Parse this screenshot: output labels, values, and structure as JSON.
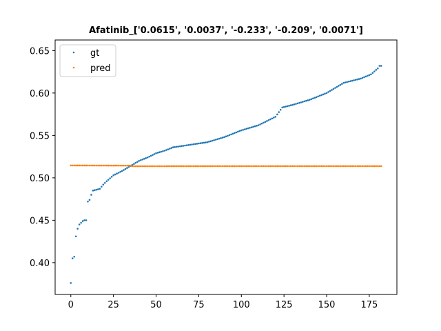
{
  "chart_data": {
    "type": "scatter",
    "title": "Afatinib_['0.0615', '0.0037', '-0.233', '-0.209', '0.0071']",
    "xlabel": "",
    "ylabel": "",
    "xlim": [
      -9.2,
      191.2
    ],
    "ylim": [
      0.3625,
      0.6625
    ],
    "xticks": [
      0,
      25,
      50,
      75,
      100,
      125,
      150,
      175
    ],
    "xtick_labels": [
      "0",
      "25",
      "50",
      "75",
      "100",
      "125",
      "150",
      "175"
    ],
    "yticks": [
      0.4,
      0.45,
      0.5,
      0.55,
      0.6,
      0.65
    ],
    "ytick_labels": [
      "0.40",
      "0.45",
      "0.50",
      "0.55",
      "0.60",
      "0.65"
    ],
    "legend": "upper-left",
    "grid": false,
    "n_points": 183,
    "series": [
      {
        "name": "gt",
        "color": "#1f77b4",
        "anchors": [
          [
            0,
            0.376
          ],
          [
            1,
            0.405
          ],
          [
            2,
            0.407
          ],
          [
            3,
            0.431
          ],
          [
            4,
            0.44
          ],
          [
            5,
            0.445
          ],
          [
            6,
            0.447
          ],
          [
            7,
            0.449
          ],
          [
            8,
            0.45
          ],
          [
            9,
            0.45
          ],
          [
            10,
            0.472
          ],
          [
            11,
            0.474
          ],
          [
            12,
            0.48
          ],
          [
            13,
            0.485
          ],
          [
            15,
            0.486
          ],
          [
            17,
            0.487
          ],
          [
            19,
            0.492
          ],
          [
            21,
            0.496
          ],
          [
            25,
            0.503
          ],
          [
            30,
            0.508
          ],
          [
            35,
            0.514
          ],
          [
            40,
            0.52
          ],
          [
            45,
            0.524
          ],
          [
            50,
            0.529
          ],
          [
            55,
            0.532
          ],
          [
            60,
            0.536
          ],
          [
            70,
            0.539
          ],
          [
            80,
            0.542
          ],
          [
            90,
            0.548
          ],
          [
            100,
            0.556
          ],
          [
            110,
            0.562
          ],
          [
            120,
            0.572
          ],
          [
            124,
            0.583
          ],
          [
            130,
            0.586
          ],
          [
            140,
            0.592
          ],
          [
            150,
            0.6
          ],
          [
            160,
            0.612
          ],
          [
            170,
            0.617
          ],
          [
            176,
            0.622
          ],
          [
            180,
            0.629
          ],
          [
            181,
            0.632
          ],
          [
            182,
            0.632
          ],
          [
            183,
            0.649
          ]
        ]
      },
      {
        "name": "pred",
        "color": "#ff7f0e",
        "anchors": [
          [
            0,
            0.5146
          ],
          [
            35,
            0.5144
          ],
          [
            36,
            0.5137
          ],
          [
            100,
            0.5138
          ],
          [
            183,
            0.5138
          ]
        ]
      }
    ]
  }
}
